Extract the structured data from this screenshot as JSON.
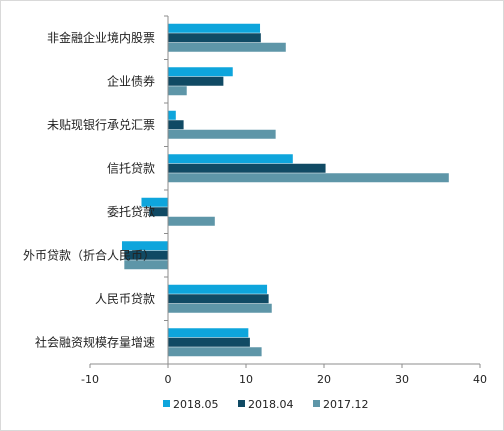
{
  "chart_data": {
    "type": "bar",
    "orientation": "horizontal",
    "categories": [
      "非金融企业境内股票",
      "企业债券",
      "未贴现银行承兑汇票",
      "信托贷款",
      "委托贷款",
      "外币贷款（折合人民币）",
      "人民币贷款",
      "社会融资规模存量增速"
    ],
    "series": [
      {
        "name": "2018.05",
        "color": "#0ea5dc",
        "values": [
          11.8,
          8.3,
          1.0,
          16.0,
          -3.4,
          -5.9,
          12.7,
          10.3
        ]
      },
      {
        "name": "2018.04",
        "color": "#104a64",
        "values": [
          11.9,
          7.1,
          2.0,
          20.2,
          -2.4,
          -5.6,
          12.9,
          10.5
        ]
      },
      {
        "name": "2017.12",
        "color": "#5e96a8",
        "values": [
          15.1,
          2.4,
          13.8,
          36.0,
          6.0,
          -5.6,
          13.3,
          12.0
        ]
      }
    ],
    "xlim": [
      -10,
      40
    ],
    "xticks": [
      "-10",
      "0",
      "10",
      "20",
      "30",
      "40"
    ],
    "grid": false,
    "legend": "bottom",
    "title": "",
    "xlabel": "",
    "ylabel": ""
  }
}
